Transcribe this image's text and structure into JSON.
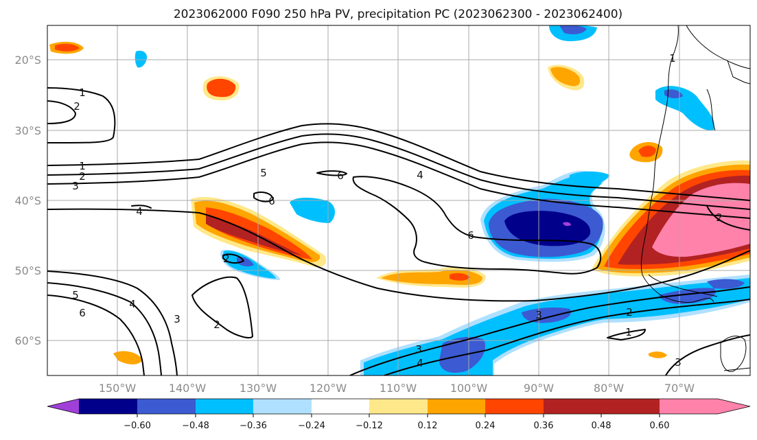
{
  "title": "2023062000 F090 250 hPa PV, precipitation PC (2023062300 - 2023062400)",
  "lon_ticks": [
    "150°W",
    "140°W",
    "130°W",
    "120°W",
    "110°W",
    "100°W",
    "90°W",
    "80°W",
    "70°W"
  ],
  "lat_ticks": [
    "20°S",
    "30°S",
    "40°S",
    "50°S",
    "60°S"
  ],
  "colorbar": {
    "tick_labels": [
      "−0.60",
      "−0.48",
      "−0.36",
      "−0.24",
      "−0.12",
      "0.12",
      "0.24",
      "0.36",
      "0.48",
      "0.60"
    ],
    "colors": [
      "#a040d8",
      "#00008b",
      "#3c5ad2",
      "#00bfff",
      "#b0e0ff",
      "#ffffff",
      "#ffe88a",
      "#ffa500",
      "#ff4500",
      "#b22222",
      "#ff82ab"
    ]
  },
  "contour_labels": [
    "1",
    "2",
    "3",
    "4",
    "5",
    "6"
  ],
  "colors": {
    "contour": "#000000",
    "grid": "#a9a9a9"
  }
}
